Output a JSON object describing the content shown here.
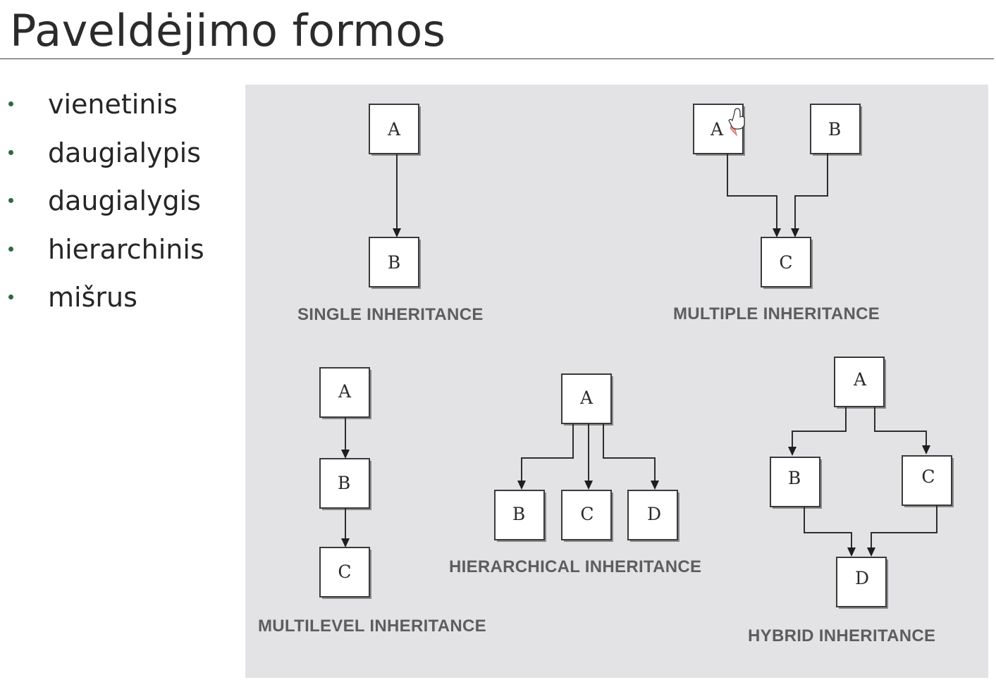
{
  "slide": {
    "title": "Paveldėjimo formos",
    "bullets": [
      "vienetinis",
      "daugialypis",
      "daugialygis",
      "hierarchinis",
      "mišrus"
    ]
  },
  "diagram": {
    "single": {
      "caption": "SINGLE INHERITANCE",
      "boxes": [
        "A",
        "B"
      ]
    },
    "multiple": {
      "caption": "MULTIPLE INHERITANCE",
      "boxes": [
        "A",
        "B",
        "C"
      ]
    },
    "multilevel": {
      "caption": "MULTILEVEL INHERITANCE",
      "boxes": [
        "A",
        "B",
        "C"
      ]
    },
    "hierarchical": {
      "caption": "HIERARCHICAL INHERITANCE",
      "boxes": [
        "A",
        "B",
        "C",
        "D"
      ]
    },
    "hybrid": {
      "caption": "HYBRID INHERITANCE",
      "boxes": [
        "A",
        "B",
        "C",
        "D"
      ]
    }
  }
}
